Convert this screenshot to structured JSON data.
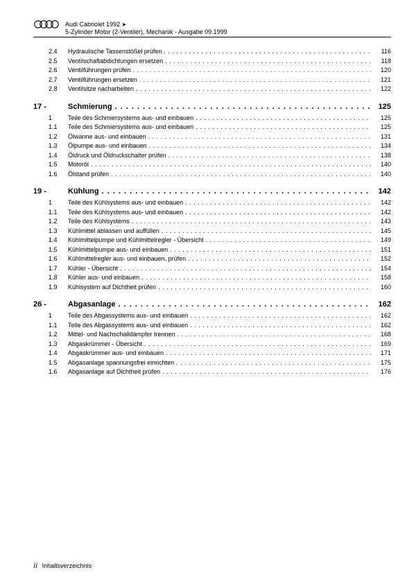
{
  "header": {
    "model": "Audi Cabriolet 1992",
    "arrow": "➤",
    "subtitle": "5-Zylinder Motor (2-Ventiler), Mechanik - Ausgabe 09.1999"
  },
  "dots_long": ". . . . . . . . . . . . . . . . . . . . . . . . . . . . . . . . . . . . . . . . . . . . . . . . . . . . . . . . . . . . . . . . . . . . . . . . . . . . . . . . . . . . . . . . . . . . . . . . . . . . . . . . . . . . . . . . . . . . . . . . . . . . . . . . . . . . . . . . . . . . . . . . . . . . . . . . . . . . . . .",
  "dots_small": ". . . . . . . . . . . . . . . . . . . . . . . . . . . . . . . . . . . . . . . . . . . . . . . . . . . . . . . . . . . . . . . . . . . . . . . . . . . . . . . . . . . . . . . . . . . . . . . . . . . . . . . . . . . . . . . . . . . . . . . . . . . . . . . . . . . . . . . . . . . . . . . . . . . . . . . . . . . . . . . . . . . . . . . . . . . . . . . . . . . . . . . . . . . . . . . . . . . . . . . . . . . . . . . .",
  "prelude": [
    {
      "num": "2.4",
      "title": "Hydraulische Tassenstößel prüfen",
      "page": "116"
    },
    {
      "num": "2.5",
      "title": "Ventilschaftabdichtungen ersetzen",
      "page": "118"
    },
    {
      "num": "2.6",
      "title": "Ventilführungen prüfen",
      "page": "120"
    },
    {
      "num": "2.7",
      "title": "Ventilführungen ersetzen",
      "page": "121"
    },
    {
      "num": "2.8",
      "title": "Ventilsitze nacharbeiten",
      "page": "122"
    }
  ],
  "sections": [
    {
      "num": "17 -",
      "title": "Schmierung",
      "page": "125",
      "items": [
        {
          "num": "1",
          "title": "Teile des Schmiersystems aus- und einbauen",
          "page": "125"
        },
        {
          "num": "1.1",
          "title": "Teile des Schmiersystems aus- und einbauen",
          "page": "125"
        },
        {
          "num": "1.2",
          "title": "Ölwanne aus- und einbauen",
          "page": "131"
        },
        {
          "num": "1.3",
          "title": "Ölpumpe aus- und einbauen",
          "page": "134"
        },
        {
          "num": "1.4",
          "title": "Öldruck und Öldruckschalter prüfen",
          "page": "138"
        },
        {
          "num": "1.5",
          "title": "Motoröl",
          "page": "140"
        },
        {
          "num": "1.6",
          "title": "Ölstand prüfen",
          "page": "140"
        }
      ]
    },
    {
      "num": "19 -",
      "title": "Kühlung",
      "page": "142",
      "items": [
        {
          "num": "1",
          "title": "Teile des Kühlsystems aus- und einbauen",
          "page": "142"
        },
        {
          "num": "1.1",
          "title": "Teile des Kühlsystems aus- und einbauen",
          "page": "142"
        },
        {
          "num": "1.2",
          "title": "Teile des Kühlsystems",
          "page": "143"
        },
        {
          "num": "1.3",
          "title": "Kühlmittel ablassen und auffüllen",
          "page": "145"
        },
        {
          "num": "1.4",
          "title": "Kühlmittelpumpe und Kühlmittelregler - Übersicht",
          "page": "149"
        },
        {
          "num": "1.5",
          "title": "Kühlmittelpumpe aus- und einbauen",
          "page": "151"
        },
        {
          "num": "1.6",
          "title": "Kühlmittelregler aus- und einbauen, prüfen",
          "page": "152"
        },
        {
          "num": "1.7",
          "title": "Kühler - Übersicht",
          "page": "154"
        },
        {
          "num": "1.8",
          "title": "Kühler aus- und einbauen",
          "page": "158"
        },
        {
          "num": "1.9",
          "title": "Kühlsystem auf Dichtheit prüfen",
          "page": "160"
        }
      ]
    },
    {
      "num": "26 -",
      "title": "Abgasanlage",
      "page": "162",
      "items": [
        {
          "num": "1",
          "title": "Teile des Abgassystems aus- und einbauen",
          "page": "162"
        },
        {
          "num": "1.1",
          "title": "Teile des Abgassystems aus- und einbauen",
          "page": "162"
        },
        {
          "num": "1.2",
          "title": "Mittel- und Nachschalldämpfer trennen",
          "page": "168"
        },
        {
          "num": "1.3",
          "title": "Abgaskrümmer - Übersicht",
          "page": "169"
        },
        {
          "num": "1.4",
          "title": "Abgaskrümmer aus- und einbauen",
          "page": "171"
        },
        {
          "num": "1.5",
          "title": "Abgasanlage spannungsfrei einrichten",
          "page": "175"
        },
        {
          "num": "1.6",
          "title": "Abgasanlage auf Dichtheit prüfen",
          "page": "176"
        }
      ]
    }
  ],
  "footer": {
    "page_roman": "ii",
    "label": "Inhaltsverzeichnis"
  }
}
